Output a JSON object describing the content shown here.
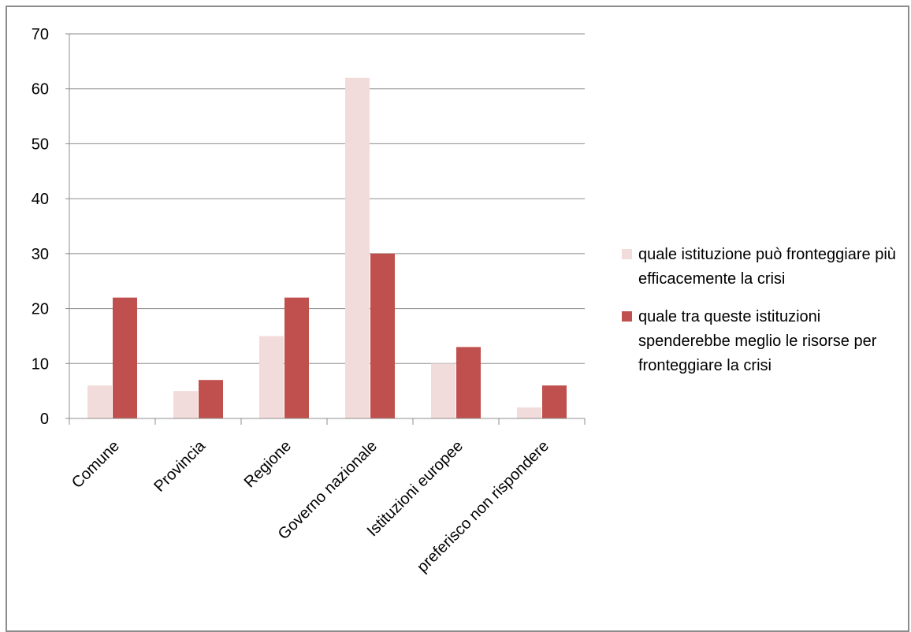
{
  "chart_data": {
    "type": "bar",
    "title": "",
    "xlabel": "",
    "ylabel": "",
    "categories": [
      "Comune",
      "Provincia",
      "Regione",
      "Governo nazionale",
      "Istituzioni europee",
      "preferisco non rispondere"
    ],
    "series": [
      {
        "name": "quale istituzione  può fronteggiare più efficacemente la crisi",
        "color": "#f2dcdb",
        "values": [
          6,
          5,
          15,
          62,
          10,
          2
        ]
      },
      {
        "name": "quale tra queste istituzioni spenderebbe meglio le risorse per fronteggiare la crisi",
        "color": "#c0504d",
        "values": [
          22,
          7,
          22,
          30,
          13,
          6
        ]
      }
    ],
    "ylim": [
      0,
      70
    ],
    "yticks": [
      0,
      10,
      20,
      30,
      40,
      50,
      60,
      70
    ],
    "grid": true,
    "legend_position": "right"
  }
}
